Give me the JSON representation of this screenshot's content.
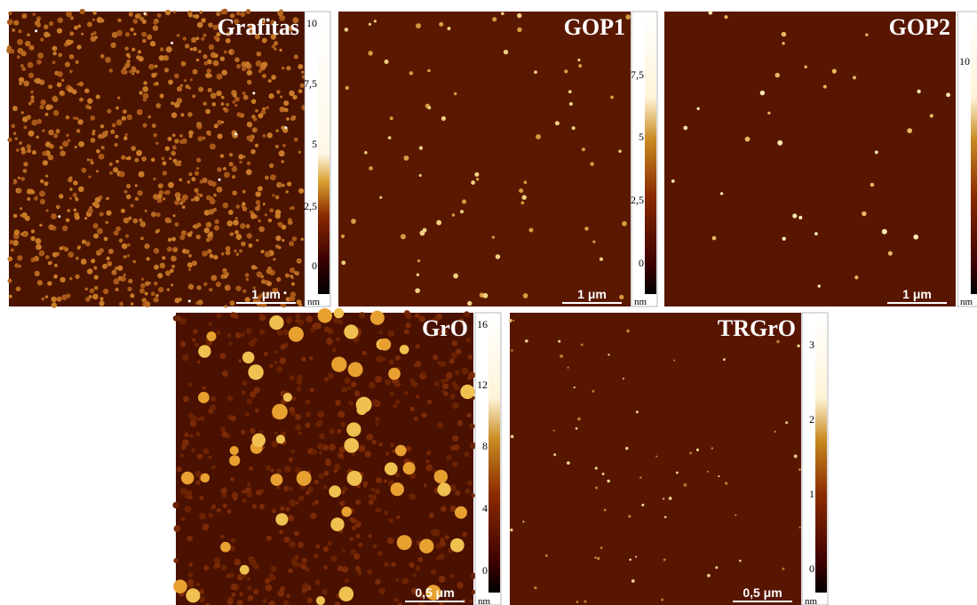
{
  "panels": [
    {
      "title": "Grafitas",
      "scale_bar": "1 μm",
      "colorbar": {
        "ticks": [
          "10",
          "7,5",
          "5",
          "2,5",
          "0"
        ],
        "unit": "nm"
      }
    },
    {
      "title": "GOP1",
      "scale_bar": "1 μm",
      "colorbar": {
        "ticks": [
          "7,5",
          "5",
          "2,5",
          "0"
        ],
        "unit": "nm"
      }
    },
    {
      "title": "GOP2",
      "scale_bar": "1 μm",
      "colorbar": {
        "ticks": [
          "10"
        ],
        "unit": "nm"
      }
    },
    {
      "title": "GrO",
      "scale_bar": "0,5 μm",
      "colorbar": {
        "ticks": [
          "16",
          "12",
          "8",
          "4",
          "0"
        ],
        "unit": "nm"
      }
    },
    {
      "title": "TRGrO",
      "scale_bar": "0,5 μm",
      "colorbar": {
        "ticks": [
          "3",
          "2",
          "1",
          "0"
        ],
        "unit": "nm"
      }
    }
  ]
}
